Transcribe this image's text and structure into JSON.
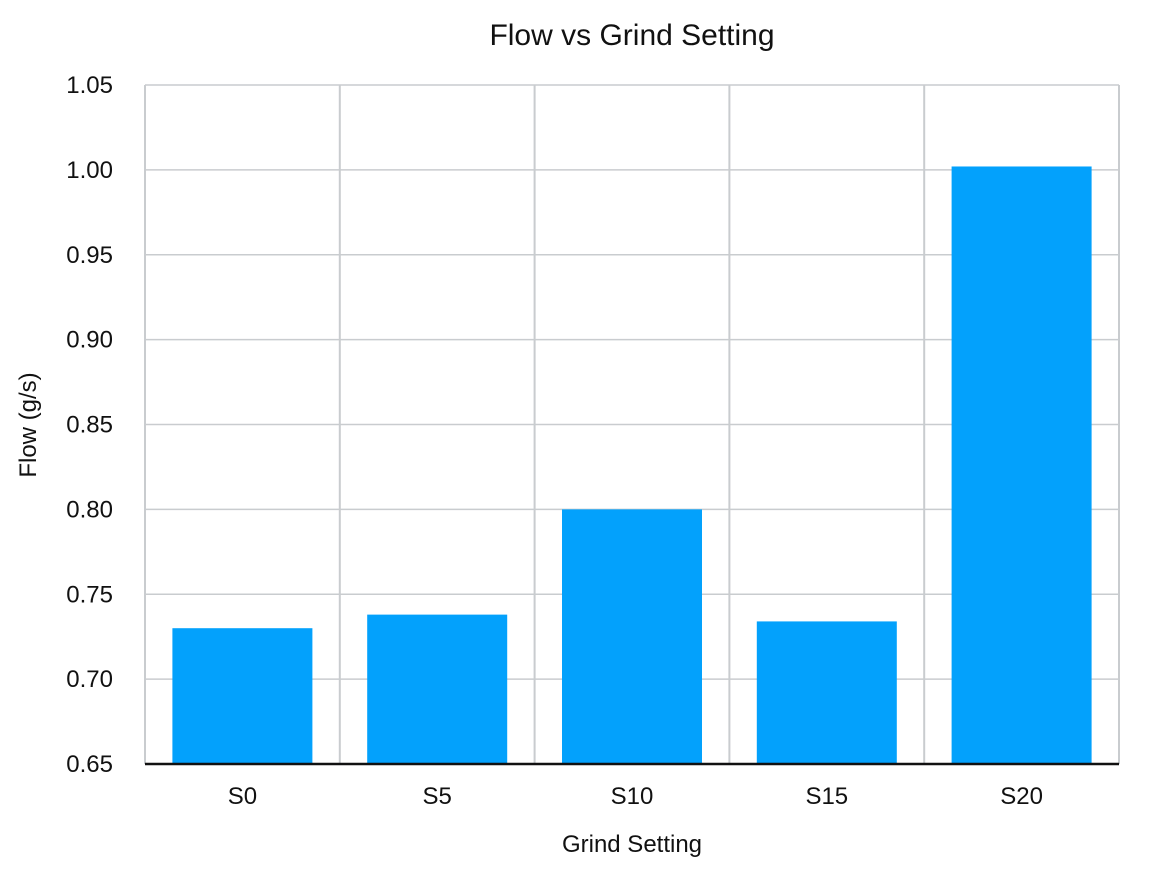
{
  "chart_data": {
    "type": "bar",
    "title": "Flow vs Grind Setting",
    "xlabel": "Grind Setting",
    "ylabel": "Flow (g/s)",
    "categories": [
      "S0",
      "S5",
      "S10",
      "S15",
      "S20"
    ],
    "values": [
      0.73,
      0.738,
      0.8,
      0.734,
      1.002
    ],
    "ylim": [
      0.65,
      1.05
    ],
    "yticks": [
      "0.65",
      "0.70",
      "0.75",
      "0.80",
      "0.85",
      "0.90",
      "0.95",
      "1.00",
      "1.05"
    ],
    "grid": true,
    "legend": "none",
    "colors": {
      "bar": "#03a1fc",
      "grid": "#c9cccf",
      "axis": "#111111"
    }
  }
}
